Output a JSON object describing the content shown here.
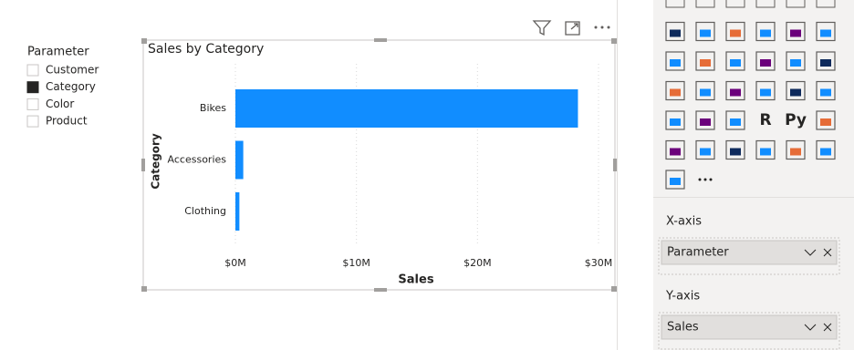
{
  "slicer": {
    "title": "Parameter",
    "items": [
      {
        "label": "Customer",
        "checked": false
      },
      {
        "label": "Category",
        "checked": true
      },
      {
        "label": "Color",
        "checked": false
      },
      {
        "label": "Product",
        "checked": false
      }
    ]
  },
  "chart_data": {
    "type": "hbar",
    "title": "Sales by Category",
    "x_label": "Sales",
    "y_label": "Category",
    "categories": [
      "Bikes",
      "Accessories",
      "Clothing"
    ],
    "values": [
      28300000,
      650000,
      330000
    ],
    "color": "#118dff",
    "xlim": [
      0,
      30000000
    ],
    "xticks": [
      {
        "value": 0,
        "label": "$0M"
      },
      {
        "value": 10000000,
        "label": "$10M"
      },
      {
        "value": 20000000,
        "label": "$20M"
      },
      {
        "value": 30000000,
        "label": "$30M"
      }
    ],
    "grid": true
  },
  "visualizations": {
    "text_icons": [
      "R",
      "Py"
    ]
  },
  "fields": [
    {
      "label": "X-axis",
      "value": "Parameter"
    },
    {
      "label": "Y-axis",
      "value": "Sales"
    }
  ]
}
